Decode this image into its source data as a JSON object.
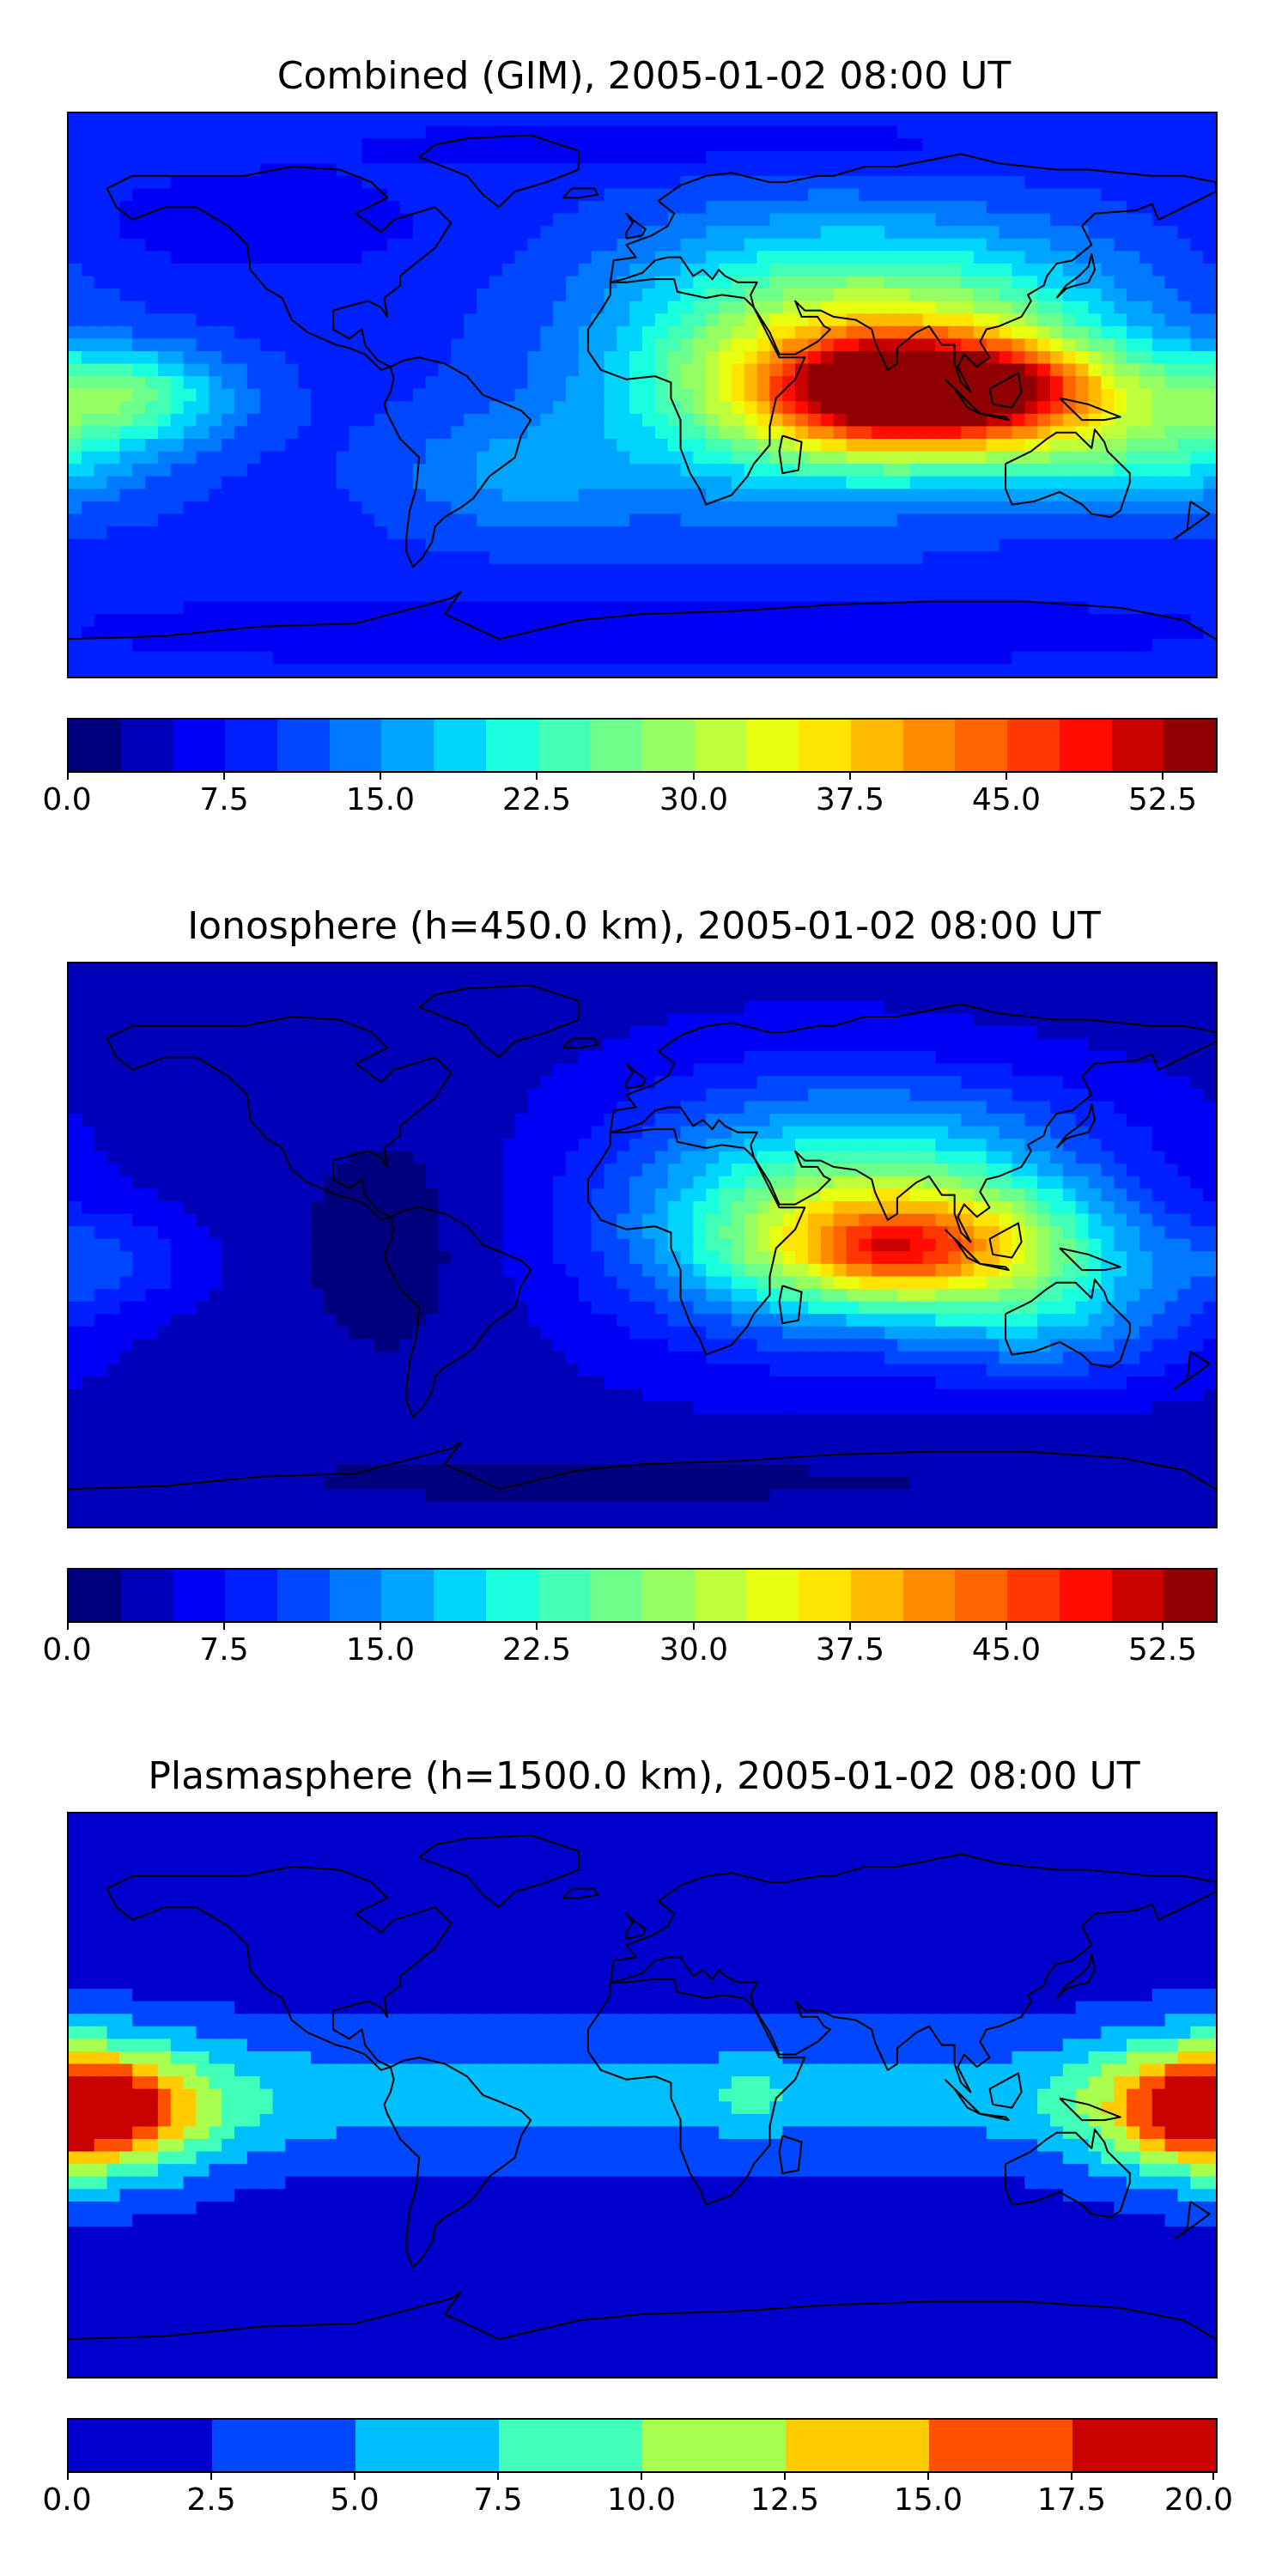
{
  "panels": [
    {
      "id": "combined",
      "title": "Combined (GIM), 2005-01-02 08:00 UT",
      "levels": [
        0.0,
        2.5,
        5.0,
        7.5,
        10.0,
        12.5,
        15.0,
        17.5,
        20.0,
        22.5,
        25.0,
        27.5,
        30.0,
        32.5,
        35.0,
        37.5,
        40.0,
        42.5,
        45.0,
        47.5,
        50.0,
        52.5,
        55.0
      ],
      "colors": [
        "#00007f",
        "#0000b9",
        "#0000f5",
        "#0020ff",
        "#0048ff",
        "#0078ff",
        "#00a4ff",
        "#00d4ff",
        "#19ffde",
        "#42ffb5",
        "#6dff8a",
        "#94ff63",
        "#bdff3a",
        "#e8ff0f",
        "#ffe400",
        "#ffb900",
        "#ff8c00",
        "#ff6400",
        "#ff3700",
        "#ff0d00",
        "#c80000",
        "#8f0000"
      ],
      "tick_labels": [
        "0.0",
        "7.5",
        "15.0",
        "22.5",
        "30.0",
        "37.5",
        "45.0",
        "52.5"
      ],
      "field": {
        "base": 9,
        "blobs": [
          {
            "lon": 95,
            "lat": 0,
            "amp": 42,
            "rlon": 55,
            "rlat": 20
          },
          {
            "lon": 75,
            "lat": 2,
            "amp": 10,
            "rlon": 25,
            "rlat": 12
          },
          {
            "lon": 120,
            "lat": 4,
            "amp": 6,
            "rlon": 25,
            "rlat": 12
          },
          {
            "lon": 45,
            "lat": 10,
            "amp": 18,
            "rlon": 60,
            "rlat": 40
          },
          {
            "lon": 100,
            "lat": 30,
            "amp": 10,
            "rlon": 60,
            "rlat": 25
          },
          {
            "lon": -165,
            "lat": 0,
            "amp": 16,
            "rlon": 35,
            "rlat": 15
          },
          {
            "lon": 160,
            "lat": -20,
            "amp": 10,
            "rlon": 45,
            "rlat": 18
          },
          {
            "lon": -40,
            "lat": -25,
            "amp": 6,
            "rlon": 40,
            "rlat": 20
          },
          {
            "lon": -120,
            "lat": 55,
            "amp": -4,
            "rlon": 50,
            "rlat": 15
          },
          {
            "lon": 0,
            "lat": -75,
            "amp": -4,
            "rlon": 180,
            "rlat": 12
          },
          {
            "lon": 20,
            "lat": 80,
            "amp": -3,
            "rlon": 120,
            "rlat": 10
          }
        ]
      }
    },
    {
      "id": "ionosphere",
      "title": "Ionosphere  (h=450.0 km), 2005-01-02 08:00 UT",
      "levels": [
        0.0,
        2.5,
        5.0,
        7.5,
        10.0,
        12.5,
        15.0,
        17.5,
        20.0,
        22.5,
        25.0,
        27.5,
        30.0,
        32.5,
        35.0,
        37.5,
        40.0,
        42.5,
        45.0,
        47.5,
        50.0,
        52.5,
        55.0
      ],
      "colors": [
        "#00007f",
        "#0000b9",
        "#0000f5",
        "#0020ff",
        "#0048ff",
        "#0078ff",
        "#00a4ff",
        "#00d4ff",
        "#19ffde",
        "#42ffb5",
        "#6dff8a",
        "#94ff63",
        "#bdff3a",
        "#e8ff0f",
        "#ffe400",
        "#ffb900",
        "#ff8c00",
        "#ff6400",
        "#ff3700",
        "#ff0d00",
        "#c80000",
        "#8f0000"
      ],
      "tick_labels": [
        "0.0",
        "7.5",
        "15.0",
        "22.5",
        "30.0",
        "37.5",
        "45.0",
        "52.5"
      ],
      "field": {
        "base": 4,
        "blobs": [
          {
            "lon": 90,
            "lat": 0,
            "amp": 30,
            "rlon": 55,
            "rlat": 20
          },
          {
            "lon": 78,
            "lat": -3,
            "amp": 6,
            "rlon": 20,
            "rlat": 10
          },
          {
            "lon": 45,
            "lat": 10,
            "amp": 15,
            "rlon": 60,
            "rlat": 40
          },
          {
            "lon": 100,
            "lat": 30,
            "amp": 8,
            "rlon": 60,
            "rlat": 25
          },
          {
            "lon": 130,
            "lat": -25,
            "amp": 10,
            "rlon": 45,
            "rlat": 20
          },
          {
            "lon": -170,
            "lat": -5,
            "amp": 6,
            "rlon": 30,
            "rlat": 15
          },
          {
            "lon": -80,
            "lat": 0,
            "amp": -3,
            "rlon": 30,
            "rlat": 40
          },
          {
            "lon": 0,
            "lat": -75,
            "amp": -2,
            "rlon": 180,
            "rlat": 12
          }
        ]
      }
    },
    {
      "id": "plasmasphere",
      "title": "Plasmasphere (h=1500.0 km), 2005-01-02 08:00 UT",
      "levels": [
        0.0,
        2.5,
        5.0,
        7.5,
        10.0,
        12.5,
        15.0,
        17.5,
        20.0
      ],
      "colors": [
        "#0000cd",
        "#0048ff",
        "#00bfff",
        "#40ffb8",
        "#a8ff50",
        "#ffcc00",
        "#ff5000",
        "#c80000"
      ],
      "tick_labels": [
        "0.0",
        "2.5",
        "5.0",
        "7.5",
        "10.0",
        "12.5",
        "15.0",
        "17.5",
        "20.0"
      ],
      "field": {
        "base": 1.2,
        "blobs": [
          {
            "lon": -170,
            "lat": -5,
            "amp": 9,
            "rlon": 40,
            "rlat": 22
          },
          {
            "lon": -170,
            "lat": -5,
            "amp": 4,
            "rlon": 18,
            "rlat": 8
          },
          {
            "lon": 175,
            "lat": -5,
            "amp": 9,
            "rlon": 35,
            "rlat": 22
          },
          {
            "lon": 0,
            "lat": 0,
            "amp": 5,
            "rlon": 400,
            "rlat": 22
          },
          {
            "lon": 35,
            "lat": 0,
            "amp": 2.5,
            "rlon": 12,
            "rlat": 8
          },
          {
            "lon": 0,
            "lat": -75,
            "amp": -1.5,
            "rlon": 180,
            "rlat": 10
          },
          {
            "lon": 0,
            "lat": 75,
            "amp": -1.5,
            "rlon": 180,
            "rlat": 10
          }
        ]
      }
    }
  ]
}
